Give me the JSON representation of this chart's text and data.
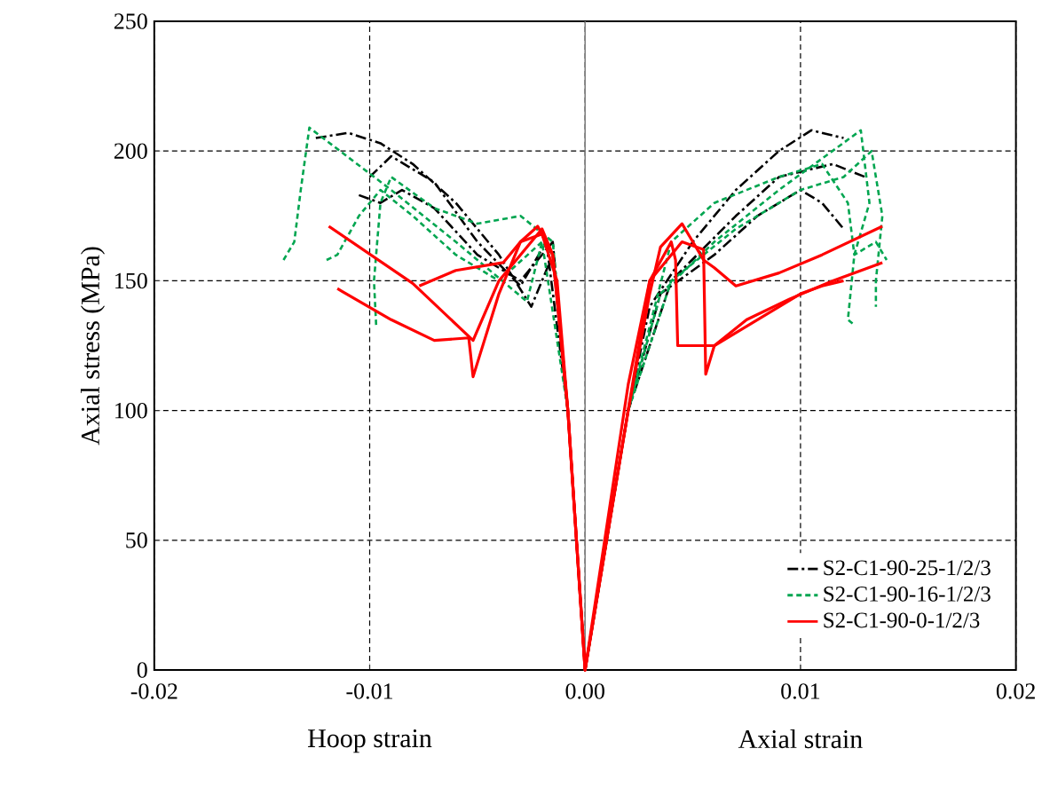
{
  "chart_data": {
    "type": "line",
    "ylabel": "Axial stress (MPa)",
    "annotations": [
      "Hoop strain",
      "Axial strain"
    ],
    "xlim": [
      -0.02,
      0.02
    ],
    "xticks": [
      -0.02,
      -0.01,
      {
        "value": 0,
        "label": "0.00"
      },
      0.01,
      0.02
    ],
    "ylim": [
      0,
      250
    ],
    "yticks": [
      0,
      50,
      100,
      150,
      200,
      250
    ],
    "grid": true,
    "legend": "bottom right",
    "ref_lines": [
      {
        "axis": "x",
        "value": 0,
        "color": "#808080",
        "line_style": "solid"
      }
    ],
    "series": [
      {
        "name": "S2-C1-90-25-1/2/3",
        "color": "#000000",
        "line_style": "dashdot",
        "x": [
          -0.0125,
          -0.011,
          -0.0095,
          -0.008,
          -0.006,
          -0.004,
          -0.0025,
          -0.0015,
          -0.0008,
          0,
          0.002,
          0.003,
          0.005,
          0.007,
          0.009,
          0.0105,
          0.012
        ],
        "values": [
          205,
          207,
          203,
          195,
          180,
          160,
          140,
          160,
          100,
          0,
          100,
          140,
          165,
          185,
          200,
          208,
          205
        ]
      },
      {
        "color": "#000000",
        "line_style": "dashdot",
        "x": [
          -0.0105,
          -0.0095,
          -0.0085,
          -0.007,
          -0.005,
          -0.003,
          -0.0015,
          -0.0008,
          0,
          0.002,
          0.0035,
          0.006,
          0.008,
          0.01,
          0.011,
          0.012
        ],
        "values": [
          183,
          180,
          185,
          178,
          160,
          150,
          165,
          100,
          0,
          100,
          145,
          160,
          175,
          185,
          180,
          170
        ]
      },
      {
        "color": "#000000",
        "line_style": "dashdot",
        "x": [
          -0.01,
          -0.009,
          -0.007,
          -0.005,
          -0.003,
          -0.0018,
          -0.0008,
          0,
          0.002,
          0.004,
          0.007,
          0.009,
          0.0115,
          0.013
        ],
        "values": [
          190,
          198,
          188,
          165,
          148,
          165,
          100,
          0,
          100,
          150,
          175,
          190,
          195,
          190
        ]
      },
      {
        "name": "S2-C1-90-16-1/2/3",
        "color": "#00a550",
        "line_style": "dashed",
        "x": [
          -0.014,
          -0.0135,
          -0.0132,
          -0.0128,
          -0.009,
          -0.006,
          -0.0027,
          -0.002,
          -0.0015,
          -0.0008,
          0,
          0.002,
          0.0035,
          0.006,
          0.009,
          0.0128,
          0.0132,
          0.0125,
          0.0122,
          0.0125
        ],
        "values": [
          158,
          165,
          185,
          209,
          185,
          165,
          142,
          165,
          160,
          100,
          0,
          100,
          145,
          165,
          185,
          208,
          180,
          160,
          135,
          133
        ]
      },
      {
        "color": "#00a550",
        "line_style": "dashed",
        "x": [
          -0.0097,
          -0.0098,
          -0.0095,
          -0.009,
          -0.007,
          -0.005,
          -0.003,
          -0.0015,
          -0.0008,
          0,
          0.002,
          0.004,
          0.007,
          0.01,
          0.012,
          0.0133,
          0.0138,
          0.0135,
          0.0135
        ],
        "values": [
          133,
          150,
          180,
          190,
          178,
          172,
          175,
          165,
          100,
          0,
          100,
          150,
          170,
          185,
          190,
          200,
          175,
          150,
          140
        ]
      },
      {
        "color": "#00a550",
        "line_style": "dashed",
        "x": [
          -0.012,
          -0.0115,
          -0.0105,
          -0.0095,
          -0.008,
          -0.006,
          -0.004,
          -0.002,
          -0.0008,
          0,
          0.002,
          0.004,
          0.006,
          0.009,
          0.011,
          0.0122,
          0.0125,
          0.0135,
          0.014
        ],
        "values": [
          158,
          160,
          175,
          185,
          175,
          160,
          150,
          165,
          100,
          0,
          100,
          165,
          180,
          190,
          195,
          180,
          160,
          165,
          158
        ]
      },
      {
        "name": "S2-C1-90-0-1/2/3",
        "color": "#ff0000",
        "line_style": "solid",
        "x": [
          -0.0077,
          -0.006,
          -0.0038,
          -0.003,
          -0.0022,
          -0.0015,
          -0.0008,
          0,
          0.002,
          0.003,
          0.0035,
          0.0045,
          0.005,
          0.0055,
          0.006,
          0.007,
          0.009,
          0.011,
          0.0138
        ],
        "values": [
          148,
          154,
          157,
          165,
          171,
          160,
          100,
          0,
          100,
          145,
          163,
          172,
          165,
          158,
          155,
          148,
          153,
          160,
          171
        ]
      },
      {
        "color": "#ff0000",
        "line_style": "solid",
        "x": [
          -0.0115,
          -0.0113,
          -0.009,
          -0.007,
          -0.0054,
          -0.0052,
          -0.004,
          -0.003,
          -0.002,
          -0.0013,
          -0.0008,
          0,
          0.002,
          0.003,
          0.0045,
          0.0055,
          0.0056,
          0.006,
          0.0075,
          0.0095,
          0.0115,
          0.0138
        ],
        "values": [
          147,
          146,
          135,
          127,
          128,
          113,
          145,
          165,
          168,
          150,
          100,
          0,
          100,
          150,
          165,
          162,
          114,
          125,
          135,
          143,
          150,
          157
        ]
      },
      {
        "color": "#ff0000",
        "line_style": "solid",
        "x": [
          -0.0119,
          -0.008,
          -0.0052,
          -0.004,
          -0.003,
          -0.002,
          -0.0015,
          -0.0008,
          0,
          0.002,
          0.003,
          0.004,
          0.0042,
          0.0043,
          0.006,
          0.008,
          0.01,
          0.011,
          0.012
        ],
        "values": [
          171,
          149,
          127,
          150,
          160,
          170,
          160,
          100,
          0,
          110,
          150,
          165,
          158,
          125,
          125,
          135,
          145,
          148,
          150
        ]
      }
    ]
  }
}
